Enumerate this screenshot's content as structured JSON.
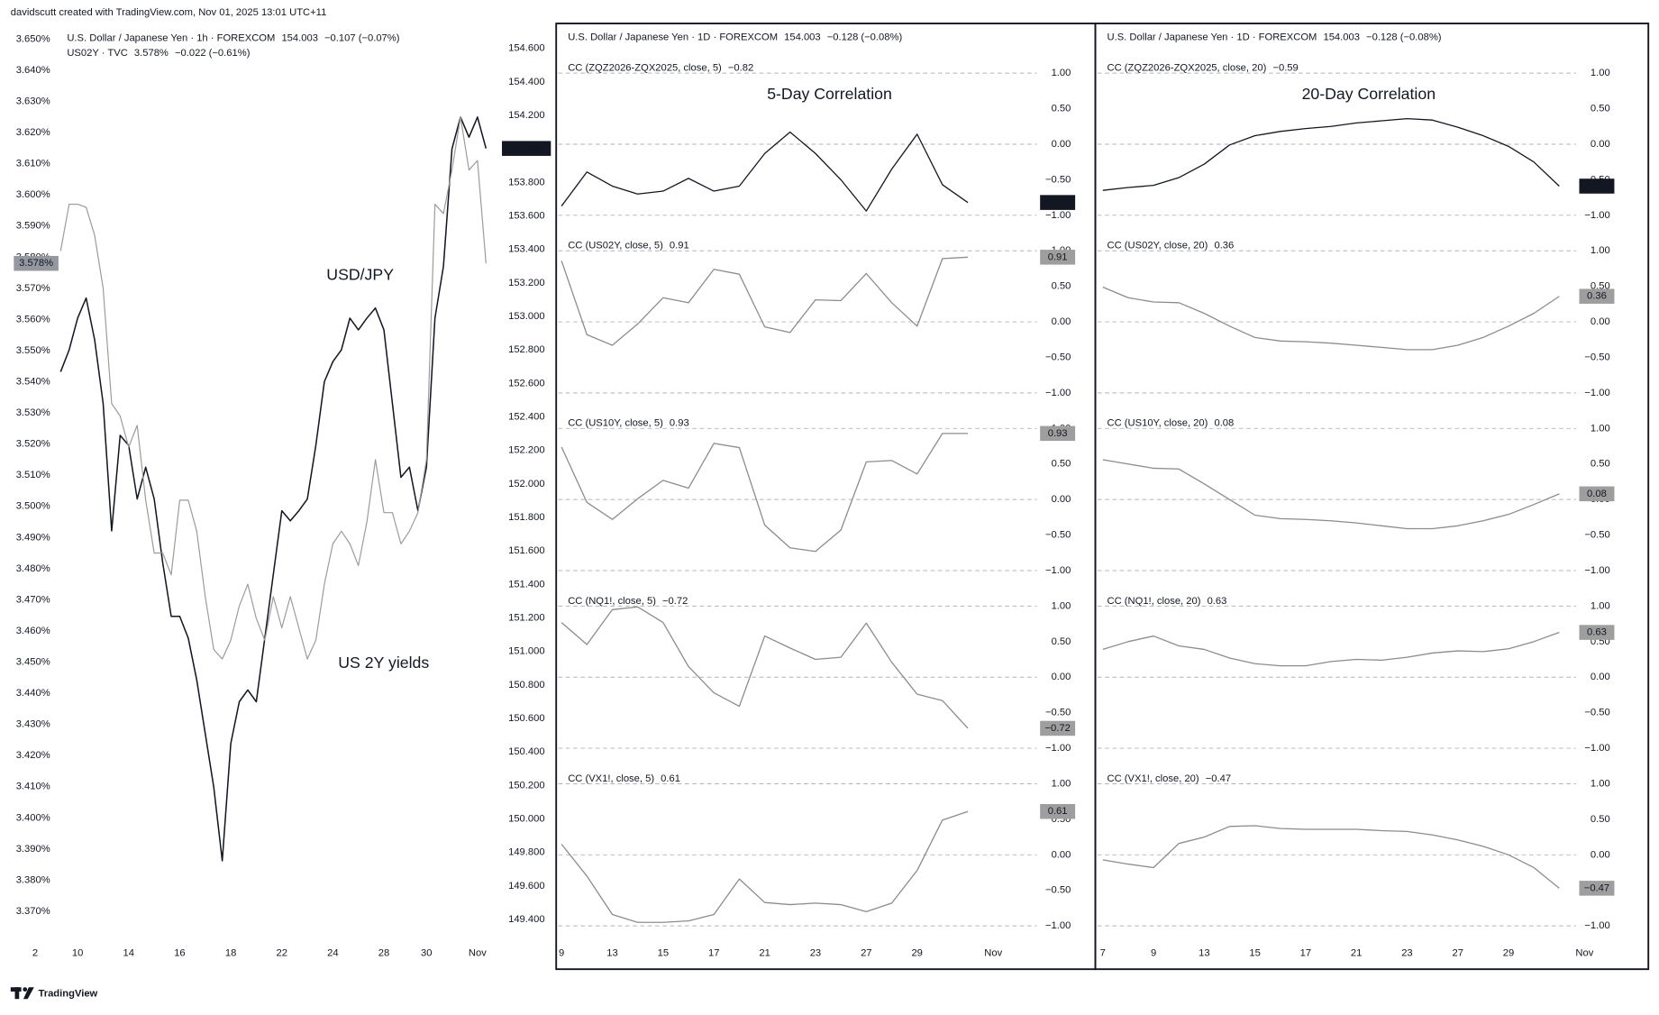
{
  "header": "davidscutt created with TradingView.com, Nov 01, 2025 13:01 UTC+11",
  "footer_logo": "TradingView",
  "chart_data": [
    {
      "type": "line",
      "categories": [
        "2",
        null,
        null,
        null,
        null,
        "10",
        null,
        null,
        null,
        null,
        null,
        "14",
        null,
        null,
        null,
        null,
        null,
        "16",
        null,
        null,
        null,
        null,
        null,
        "18",
        null,
        null,
        null,
        null,
        null,
        "22",
        null,
        null,
        null,
        null,
        null,
        "24",
        null,
        null,
        null,
        null,
        null,
        "28",
        null,
        null,
        null,
        null,
        "30",
        null,
        null,
        null,
        null,
        null,
        "Nov",
        null
      ],
      "ylim": [
        3.362,
        3.654
      ],
      "yticks": [
        {
          "value": 3.37,
          "label": "3.370%"
        },
        {
          "value": 3.38,
          "label": "3.380%"
        },
        {
          "value": 3.39,
          "label": "3.390%"
        },
        {
          "value": 3.4,
          "label": "3.400%"
        },
        {
          "value": 3.41,
          "label": "3.410%"
        },
        {
          "value": 3.42,
          "label": "3.420%"
        },
        {
          "value": 3.43,
          "label": "3.430%"
        },
        {
          "value": 3.44,
          "label": "3.440%"
        },
        {
          "value": 3.45,
          "label": "3.450%"
        },
        {
          "value": 3.46,
          "label": "3.460%"
        },
        {
          "value": 3.47,
          "label": "3.470%"
        },
        {
          "value": 3.48,
          "label": "3.480%"
        },
        {
          "value": 3.49,
          "label": "3.490%"
        },
        {
          "value": 3.5,
          "label": "3.500%"
        },
        {
          "value": 3.51,
          "label": "3.510%"
        },
        {
          "value": 3.52,
          "label": "3.520%"
        },
        {
          "value": 3.53,
          "label": "3.530%"
        },
        {
          "value": 3.54,
          "label": "3.540%"
        },
        {
          "value": 3.55,
          "label": "3.550%"
        },
        {
          "value": 3.56,
          "label": "3.560%"
        },
        {
          "value": 3.57,
          "label": "3.570%"
        },
        {
          "value": 3.58,
          "label": "3.580%"
        },
        {
          "value": 3.59,
          "label": "3.590%"
        },
        {
          "value": 3.6,
          "label": "3.600%"
        },
        {
          "value": 3.61,
          "label": "3.610%"
        },
        {
          "value": 3.62,
          "label": "3.620%"
        },
        {
          "value": 3.63,
          "label": "3.630%"
        },
        {
          "value": 3.64,
          "label": "3.640%"
        },
        {
          "value": 3.65,
          "label": "3.650%"
        }
      ],
      "y2lim": [
        149.3,
        154.73
      ],
      "y2ticks": [
        {
          "value": 149.4,
          "label": "149.400"
        },
        {
          "value": 149.6,
          "label": "149.600"
        },
        {
          "value": 149.8,
          "label": "149.800"
        },
        {
          "value": 150.0,
          "label": "150.000"
        },
        {
          "value": 150.2,
          "label": "150.200"
        },
        {
          "value": 150.4,
          "label": "150.400"
        },
        {
          "value": 150.6,
          "label": "150.600"
        },
        {
          "value": 150.8,
          "label": "150.800"
        },
        {
          "value": 151.0,
          "label": "151.000"
        },
        {
          "value": 151.2,
          "label": "151.200"
        },
        {
          "value": 151.4,
          "label": "151.400"
        },
        {
          "value": 151.6,
          "label": "151.600"
        },
        {
          "value": 151.8,
          "label": "151.800"
        },
        {
          "value": 152.0,
          "label": "152.000"
        },
        {
          "value": 152.2,
          "label": "152.200"
        },
        {
          "value": 152.4,
          "label": "152.400"
        },
        {
          "value": 152.6,
          "label": "152.600"
        },
        {
          "value": 152.8,
          "label": "152.800"
        },
        {
          "value": 153.0,
          "label": "153.000"
        },
        {
          "value": 153.2,
          "label": "153.200"
        },
        {
          "value": 153.4,
          "label": "153.400"
        },
        {
          "value": 153.6,
          "label": "153.600"
        },
        {
          "value": 153.8,
          "label": "153.800"
        },
        {
          "value": 154.0,
          "label": "154.000"
        },
        {
          "value": 154.2,
          "label": "154.200"
        },
        {
          "value": 154.4,
          "label": "154.400"
        },
        {
          "value": 154.6,
          "label": "154.600"
        }
      ],
      "series": [
        {
          "name": "U.S. Dollar / Japanese Yen · 1h · FOREXCOM",
          "legend_value": "154.003",
          "legend_change": "−0.107 (−0.07%)",
          "axis": "y2",
          "color": "#131722",
          "values": [
            null,
            null,
            null,
            152.67,
            152.8,
            152.99,
            153.11,
            152.86,
            152.48,
            151.72,
            152.29,
            152.23,
            151.91,
            152.1,
            151.91,
            151.53,
            151.21,
            151.21,
            151.08,
            150.83,
            150.51,
            150.19,
            149.75,
            150.45,
            150.7,
            150.77,
            150.7,
            151.08,
            151.46,
            151.84,
            151.78,
            151.84,
            151.91,
            152.23,
            152.61,
            152.73,
            152.8,
            152.99,
            152.92,
            152.99,
            153.05,
            152.92,
            152.48,
            152.04,
            152.1,
            151.84,
            152.1,
            152.99,
            153.3,
            154.0,
            154.19,
            154.07,
            154.19,
            154.003
          ]
        },
        {
          "name": "US02Y · TVC",
          "legend_value": "3.578%",
          "legend_change": "−0.022 (−0.61%)",
          "color": "#9a9a9a",
          "values": [
            null,
            null,
            null,
            3.582,
            3.597,
            3.597,
            3.596,
            3.587,
            3.57,
            3.533,
            3.529,
            3.519,
            3.526,
            3.502,
            3.485,
            3.485,
            3.478,
            3.502,
            3.502,
            3.492,
            3.471,
            3.454,
            3.451,
            3.457,
            3.468,
            3.475,
            3.464,
            3.457,
            3.471,
            3.461,
            3.471,
            3.461,
            3.451,
            3.457,
            3.475,
            3.488,
            3.492,
            3.488,
            3.481,
            3.495,
            3.515,
            3.498,
            3.498,
            3.488,
            3.492,
            3.498,
            3.515,
            3.597,
            3.594,
            3.608,
            3.625,
            3.608,
            3.611,
            3.578
          ]
        }
      ],
      "annotations": [
        {
          "text": "USD/JPY",
          "color": "#131722"
        },
        {
          "text": "US 2Y yields",
          "color": "#9a9a9a"
        }
      ]
    },
    {
      "type": "line",
      "title": "5-Day Correlation",
      "symbol": "U.S. Dollar / Japanese Yen · 1D · FOREXCOM",
      "symbol_value": "154.003",
      "symbol_change": "−0.128 (−0.08%)",
      "categories": [
        "9",
        null,
        "13",
        null,
        "15",
        null,
        "17",
        null,
        "21",
        null,
        "23",
        null,
        "27",
        null,
        "29",
        null,
        null,
        "Nov"
      ],
      "ylim": [
        -1.25,
        1.25
      ],
      "yticks": [
        {
          "value": -1,
          "label": "−1.00"
        },
        {
          "value": -0.5,
          "label": "−0.50"
        },
        {
          "value": 0,
          "label": "0.00"
        },
        {
          "value": 0.5,
          "label": "0.50"
        },
        {
          "value": 1,
          "label": "1.00"
        }
      ],
      "series": [
        {
          "name": "CC (ZQZ2026-ZQX2025, close, 5)",
          "last_label": "−0.82",
          "color": "#131722",
          "values": [
            -0.87,
            -0.39,
            -0.59,
            -0.7,
            -0.66,
            -0.48,
            -0.66,
            -0.59,
            -0.13,
            0.17,
            -0.13,
            -0.5,
            -0.94,
            -0.35,
            0.14,
            -0.57,
            -0.82,
            null
          ]
        },
        {
          "name": "CC (US02Y, close, 5)",
          "last_label": "0.91",
          "color": "#8c8c8c",
          "values": [
            0.86,
            -0.18,
            -0.33,
            -0.03,
            0.34,
            0.27,
            0.74,
            0.67,
            -0.07,
            -0.15,
            0.31,
            0.3,
            0.68,
            0.27,
            -0.06,
            0.89,
            0.91,
            null
          ]
        },
        {
          "name": "CC (US10Y, close, 5)",
          "last_label": "0.93",
          "color": "#8c8c8c",
          "values": [
            0.74,
            -0.04,
            -0.28,
            0.01,
            0.27,
            0.16,
            0.79,
            0.73,
            -0.36,
            -0.68,
            -0.73,
            -0.43,
            0.53,
            0.55,
            0.36,
            0.93,
            0.93,
            null
          ]
        },
        {
          "name": "CC (NQ1!, close, 5)",
          "last_label": "−0.72",
          "color": "#8c8c8c",
          "values": [
            0.77,
            0.46,
            0.95,
            0.99,
            0.77,
            0.15,
            -0.22,
            -0.41,
            0.58,
            0.41,
            0.25,
            0.28,
            0.76,
            0.21,
            -0.24,
            -0.33,
            -0.72,
            null
          ]
        },
        {
          "name": "CC (VX1!, close, 5)",
          "last_label": "0.61",
          "color": "#8c8c8c",
          "values": [
            0.15,
            -0.3,
            -0.84,
            -0.95,
            -0.95,
            -0.93,
            -0.84,
            -0.34,
            -0.67,
            -0.7,
            -0.68,
            -0.7,
            -0.8,
            -0.68,
            -0.22,
            0.49,
            0.61,
            null
          ]
        }
      ]
    },
    {
      "type": "line",
      "title": "20-Day Correlation",
      "symbol": "U.S. Dollar / Japanese Yen · 1D · FOREXCOM",
      "symbol_value": "154.003",
      "symbol_change": "−0.128 (−0.08%)",
      "categories": [
        "7",
        null,
        "9",
        null,
        "13",
        null,
        "15",
        null,
        "17",
        null,
        "21",
        null,
        "23",
        null,
        "27",
        null,
        "29",
        null,
        null,
        "Nov"
      ],
      "ylim": [
        -1.25,
        1.25
      ],
      "yticks": [
        {
          "value": -1,
          "label": "−1.00"
        },
        {
          "value": -0.5,
          "label": "−0.50"
        },
        {
          "value": 0,
          "label": "0.00"
        },
        {
          "value": 0.5,
          "label": "0.50"
        },
        {
          "value": 1,
          "label": "1.00"
        }
      ],
      "series": [
        {
          "name": "CC (ZQZ2026-ZQX2025, close, 20)",
          "last_label": "−0.59",
          "color": "#131722",
          "values": [
            -0.65,
            -0.61,
            -0.58,
            -0.47,
            -0.28,
            -0.01,
            0.12,
            0.18,
            0.22,
            0.25,
            0.3,
            0.33,
            0.36,
            0.34,
            0.24,
            0.12,
            -0.03,
            -0.25,
            -0.59,
            null
          ]
        },
        {
          "name": "CC (US02Y, close, 20)",
          "last_label": "0.36",
          "color": "#8c8c8c",
          "values": [
            0.49,
            0.34,
            0.28,
            0.27,
            0.12,
            -0.06,
            -0.22,
            -0.27,
            -0.28,
            -0.3,
            -0.33,
            -0.36,
            -0.39,
            -0.39,
            -0.33,
            -0.22,
            -0.06,
            0.12,
            0.36,
            null
          ]
        },
        {
          "name": "CC (US10Y, close, 20)",
          "last_label": "0.08",
          "color": "#8c8c8c",
          "values": [
            0.56,
            0.5,
            0.44,
            0.43,
            0.22,
            0.0,
            -0.22,
            -0.27,
            -0.28,
            -0.3,
            -0.33,
            -0.37,
            -0.41,
            -0.41,
            -0.37,
            -0.3,
            -0.21,
            -0.07,
            0.08,
            null
          ]
        },
        {
          "name": "CC (NQ1!, close, 20)",
          "last_label": "0.63",
          "color": "#8c8c8c",
          "values": [
            0.39,
            0.5,
            0.58,
            0.44,
            0.39,
            0.27,
            0.19,
            0.16,
            0.16,
            0.22,
            0.25,
            0.24,
            0.28,
            0.34,
            0.37,
            0.36,
            0.4,
            0.5,
            0.63,
            null
          ]
        },
        {
          "name": "CC (VX1!, close, 20)",
          "last_label": "−0.47",
          "color": "#8c8c8c",
          "values": [
            -0.07,
            -0.13,
            -0.18,
            0.16,
            0.25,
            0.4,
            0.41,
            0.37,
            0.36,
            0.36,
            0.36,
            0.34,
            0.33,
            0.28,
            0.21,
            0.12,
            0.0,
            -0.18,
            -0.47,
            null
          ]
        }
      ]
    }
  ]
}
